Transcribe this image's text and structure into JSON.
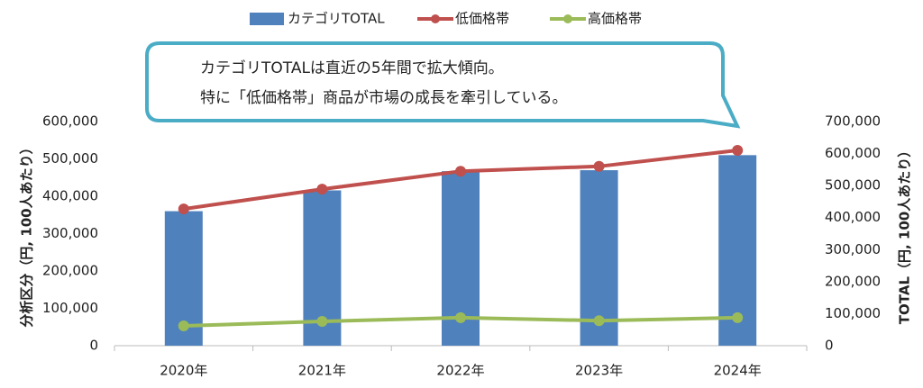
{
  "chart_data": {
    "type": "bar-line",
    "categories": [
      "2020年",
      "2021年",
      "2022年",
      "2023年",
      "2024年"
    ],
    "series": [
      {
        "name": "カテゴリTOTAL",
        "type": "bar",
        "axis": "y2",
        "color": "#4f81bd",
        "values": [
          420000,
          485000,
          545000,
          548000,
          595000
        ]
      },
      {
        "name": "低価格帯",
        "type": "line",
        "color": "#c0504d",
        "values": [
          366000,
          419000,
          467000,
          480000,
          523000
        ]
      },
      {
        "name": "高価格帯",
        "type": "line",
        "color": "#9bbb59",
        "values": [
          53000,
          65000,
          75000,
          67000,
          75000
        ]
      }
    ],
    "ylabel": "分析区分（円, 100人あたり）",
    "y2label": "TOTAL（円, 100人あたり）",
    "ylim": [
      0,
      600000
    ],
    "yticks": [
      0,
      {
        "value": 100000,
        "label": "100,000"
      },
      {
        "value": 200000,
        "label": "200,000"
      },
      {
        "value": 300000,
        "label": "300,000"
      },
      {
        "value": 400000,
        "label": "400,000"
      },
      {
        "value": 500000,
        "label": "500,000"
      },
      {
        "value": 600000,
        "label": "600,000"
      }
    ],
    "y2lim": [
      0,
      700000
    ],
    "y2ticks": [
      0,
      {
        "value": 100000,
        "label": "100,000"
      },
      {
        "value": 200000,
        "label": "200,000"
      },
      {
        "value": 300000,
        "label": "300,000"
      },
      {
        "value": 400000,
        "label": "400,000"
      },
      {
        "value": 500000,
        "label": "500,000"
      },
      {
        "value": 600000,
        "label": "600,000"
      },
      {
        "value": 700000,
        "label": "700,000"
      }
    ],
    "grid": false,
    "legend": "top",
    "annotation": [
      "カテゴリTOTALは直近の5年間で拡大傾向。",
      "特に「低価格帯」商品が市場の成長を牽引している。"
    ]
  }
}
